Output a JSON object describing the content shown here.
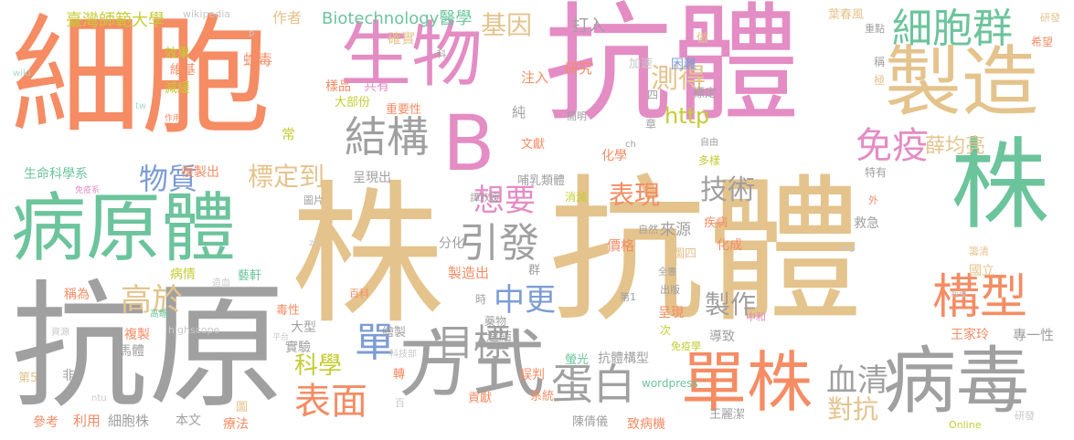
{
  "palette": {
    "orange": "#f58c64",
    "tan": "#e4c38c",
    "pink": "#e48cc4",
    "teal": "#6cc49c",
    "gray": "#a0a0a0",
    "blue": "#7c9cd4",
    "yellow": "#c4cc34",
    "light_teal": "#a8dcc8",
    "light_gray": "#c8c8c8",
    "light_orange": "#f8b8a0"
  },
  "words": [
    {
      "text": "細胞"
    },
    {
      "text": "抗體"
    },
    {
      "text": "株"
    },
    {
      "text": "抗體"
    },
    {
      "text": "抗原"
    },
    {
      "text": "病原體"
    },
    {
      "text": "株"
    },
    {
      "text": "製造"
    },
    {
      "text": "生物"
    },
    {
      "text": "B"
    },
    {
      "text": "方式"
    },
    {
      "text": "病毒"
    },
    {
      "text": "單株"
    },
    {
      "text": "構型"
    },
    {
      "text": "細胞群"
    },
    {
      "text": "結構"
    },
    {
      "text": "蛋白"
    },
    {
      "text": "表面"
    },
    {
      "text": "引發"
    },
    {
      "text": "免疫"
    },
    {
      "text": "物質"
    },
    {
      "text": "想要"
    },
    {
      "text": "目標"
    },
    {
      "text": "中更"
    },
    {
      "text": "高於"
    },
    {
      "text": "基因"
    },
    {
      "text": "測得"
    },
    {
      "text": "技術"
    },
    {
      "text": "表現"
    },
    {
      "text": "標定到"
    },
    {
      "text": "單"
    },
    {
      "text": "科學"
    },
    {
      "text": "血清"
    },
    {
      "text": "對抗"
    },
    {
      "text": "製作"
    },
    {
      "text": "薛均亮"
    },
    {
      "text": "http"
    },
    {
      "text": "Biotechnology醫學"
    },
    {
      "text": "臺灣師範大學"
    },
    {
      "text": "作者"
    },
    {
      "text": "wikipedia"
    },
    {
      "text": "確實"
    },
    {
      "text": "打入"
    },
    {
      "text": "效果"
    },
    {
      "text": "維基"
    },
    {
      "text": "減緩"
    },
    {
      "text": "蛇毒"
    },
    {
      "text": "注入"
    },
    {
      "text": "研究"
    },
    {
      "text": "加速"
    },
    {
      "text": "困難"
    },
    {
      "text": "標定"
    },
    {
      "text": "樣品"
    },
    {
      "text": "共有"
    },
    {
      "text": "大部份"
    },
    {
      "text": "重要性"
    },
    {
      "text": "常"
    },
    {
      "text": "純"
    },
    {
      "text": "文獻"
    },
    {
      "text": "化學"
    },
    {
      "text": "多樣"
    },
    {
      "text": "自由"
    },
    {
      "text": "簡明"
    },
    {
      "text": "生命科學系"
    },
    {
      "text": "複製出"
    },
    {
      "text": "呈現出"
    },
    {
      "text": "哺乳類體"
    },
    {
      "text": "特有"
    },
    {
      "text": "免疫系"
    },
    {
      "text": "圖片"
    },
    {
      "text": "譚欣媛"
    },
    {
      "text": "消滅"
    },
    {
      "text": "自然"
    },
    {
      "text": "來源"
    },
    {
      "text": "疾病"
    },
    {
      "text": "救急"
    },
    {
      "text": "分化"
    },
    {
      "text": "價格"
    },
    {
      "text": "化成"
    },
    {
      "text": "圖四"
    },
    {
      "text": "製造出"
    },
    {
      "text": "群"
    },
    {
      "text": "病情"
    },
    {
      "text": "藝軒"
    },
    {
      "text": "造血"
    },
    {
      "text": "稱為"
    },
    {
      "text": "毒性"
    },
    {
      "text": "百科"
    },
    {
      "text": "第1"
    },
    {
      "text": "出版"
    },
    {
      "text": "全書"
    },
    {
      "text": "國立"
    },
    {
      "text": "教學"
    },
    {
      "text": "高瞻"
    },
    {
      "text": "時"
    },
    {
      "text": "呈現"
    },
    {
      "text": "中和"
    },
    {
      "text": "次"
    },
    {
      "text": "複製"
    },
    {
      "text": "大型"
    },
    {
      "text": "繪製"
    },
    {
      "text": "藥物"
    },
    {
      "text": "資源"
    },
    {
      "text": "highscope"
    },
    {
      "text": "馬體"
    },
    {
      "text": "實驗"
    },
    {
      "text": "平台"
    },
    {
      "text": "連結"
    },
    {
      "text": "螢光"
    },
    {
      "text": "抗體構型"
    },
    {
      "text": "導致"
    },
    {
      "text": "王家玲"
    },
    {
      "text": "專一性"
    },
    {
      "text": "免疫學"
    },
    {
      "text": "科技部"
    },
    {
      "text": "第5"
    },
    {
      "text": "非"
    },
    {
      "text": "轉"
    },
    {
      "text": "誤判"
    },
    {
      "text": "貢獻"
    },
    {
      "text": "wordpress"
    },
    {
      "text": "ntu"
    },
    {
      "text": "百"
    },
    {
      "text": "系統"
    },
    {
      "text": "參考"
    },
    {
      "text": "利用"
    },
    {
      "text": "細胞株"
    },
    {
      "text": "本文"
    },
    {
      "text": "圖"
    },
    {
      "text": "療法"
    },
    {
      "text": "陳倩儀"
    },
    {
      "text": "致病機"
    },
    {
      "text": "王麗潔"
    },
    {
      "text": "Online"
    },
    {
      "text": "研發"
    },
    {
      "text": "葉春風"
    },
    {
      "text": "重點"
    },
    {
      "text": "希望"
    },
    {
      "text": "稱"
    },
    {
      "text": "極"
    },
    {
      "text": "做"
    },
    {
      "text": "四"
    },
    {
      "text": "章"
    },
    {
      "text": "ch"
    },
    {
      "text": "科"
    },
    {
      "text": "p"
    },
    {
      "text": "wiki"
    },
    {
      "text": "tw"
    },
    {
      "text": "作用"
    },
    {
      "text": "org"
    },
    {
      "text": "zh"
    },
    {
      "text": "外"
    },
    {
      "text": "籌清"
    },
    {
      "text": "研發"
    }
  ]
}
